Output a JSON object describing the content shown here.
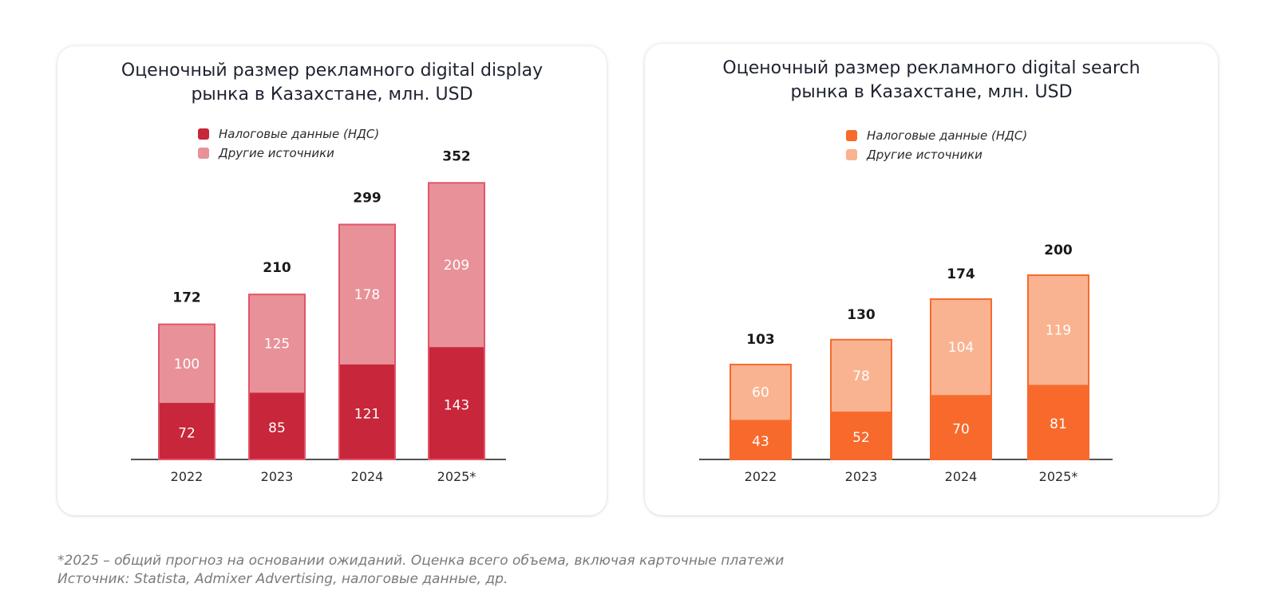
{
  "chart_data": [
    {
      "type": "bar",
      "stacked": true,
      "title_line1": "Оценочный размер рекламного digital display",
      "title_line2": "рынка в Казахстане, млн. USD",
      "categories": [
        "2022",
        "2023",
        "2024",
        "2025*"
      ],
      "series": [
        {
          "name": "Налоговые данные (НДС)",
          "values": [
            72,
            85,
            121,
            143
          ],
          "color": "#c8263b"
        },
        {
          "name": "Другие источники",
          "values": [
            100,
            125,
            178,
            209
          ],
          "color": "#e99198"
        }
      ],
      "totals": [
        172,
        210,
        299,
        352
      ],
      "legend_position": "top-center",
      "grid": false,
      "border_color": "#e0566a"
    },
    {
      "type": "bar",
      "stacked": true,
      "title_line1": "Оценочный размер рекламного digital search",
      "title_line2": "рынка в Казахстане, млн. USD",
      "categories": [
        "2022",
        "2023",
        "2024",
        "2025*"
      ],
      "series": [
        {
          "name": "Налоговые данные (НДС)",
          "values": [
            43,
            52,
            70,
            81
          ],
          "color": "#f76a2c"
        },
        {
          "name": "Другие источники",
          "values": [
            60,
            78,
            104,
            119
          ],
          "color": "#fab390"
        }
      ],
      "totals": [
        103,
        130,
        174,
        200
      ],
      "legend_position": "top-center",
      "grid": false,
      "border_color": "#f76a2c"
    }
  ],
  "footnote": {
    "line1": "*2025 – общий прогноз на основании ожиданий. Оценка всего объема, включая карточные платежи",
    "line2": "Источник: Statista, Admixer Advertising, налоговые данные, др."
  }
}
